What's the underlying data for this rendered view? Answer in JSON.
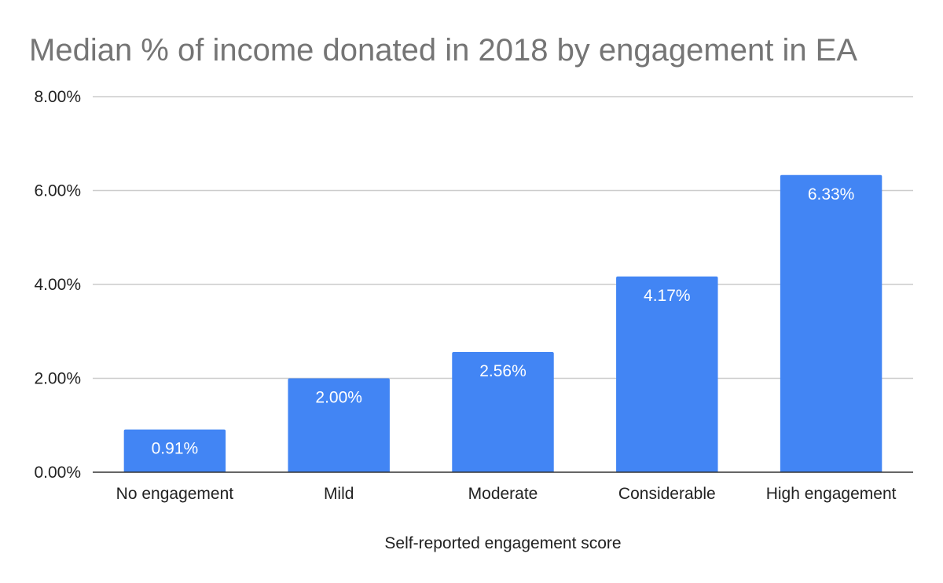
{
  "chart_data": {
    "type": "bar",
    "title": "Median % of income donated in 2018 by engagement in EA",
    "xlabel": "Self-reported engagement score",
    "ylabel": "",
    "categories": [
      "No engagement",
      "Mild",
      "Moderate",
      "Considerable",
      "High engagement"
    ],
    "values": [
      0.91,
      2.0,
      2.56,
      4.17,
      6.33
    ],
    "data_labels": [
      "0.91%",
      "2.00%",
      "2.56%",
      "4.17%",
      "6.33%"
    ],
    "ylim": [
      0,
      8
    ],
    "y_ticks": [
      0,
      2,
      4,
      6,
      8
    ],
    "y_tick_labels": [
      "0.00%",
      "2.00%",
      "4.00%",
      "6.00%",
      "8.00%"
    ],
    "grid": true,
    "legend": "none",
    "bar_color": "#4285f4"
  }
}
